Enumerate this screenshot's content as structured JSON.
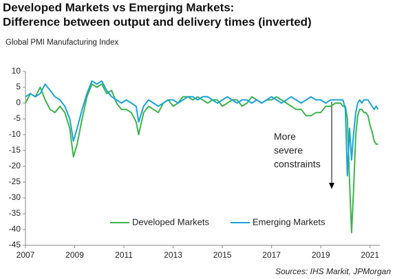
{
  "chart_data": {
    "type": "line",
    "title": "Developed Markets vs Emerging Markets:",
    "subtitle": "Difference between output and delivery times (inverted)",
    "y_label": "Global PMI Manufacturing Index",
    "annotation": [
      "More",
      "severe",
      "constraints"
    ],
    "source": "Sources: IHS Markit, JPMorgan",
    "x": [
      2007.0,
      2007.2,
      2007.4,
      2007.6,
      2007.8,
      2008.0,
      2008.2,
      2008.4,
      2008.6,
      2008.8,
      2008.95,
      2009.1,
      2009.3,
      2009.5,
      2009.7,
      2009.9,
      2010.1,
      2010.3,
      2010.5,
      2010.7,
      2010.9,
      2011.1,
      2011.3,
      2011.5,
      2011.6,
      2011.8,
      2012.0,
      2012.2,
      2012.4,
      2012.6,
      2012.8,
      2013.0,
      2013.2,
      2013.4,
      2013.6,
      2013.8,
      2014.0,
      2014.2,
      2014.4,
      2014.6,
      2014.8,
      2015.0,
      2015.2,
      2015.4,
      2015.6,
      2015.8,
      2016.0,
      2016.2,
      2016.4,
      2016.6,
      2016.8,
      2017.0,
      2017.2,
      2017.4,
      2017.6,
      2017.8,
      2018.0,
      2018.2,
      2018.4,
      2018.6,
      2018.8,
      2019.0,
      2019.2,
      2019.4,
      2019.6,
      2019.8,
      2019.9,
      2020.0,
      2020.08,
      2020.17,
      2020.25,
      2020.33,
      2020.42,
      2020.5,
      2020.58,
      2020.67,
      2020.75,
      2020.83,
      2020.92,
      2021.0,
      2021.08,
      2021.17,
      2021.25,
      2021.33
    ],
    "series": [
      {
        "name": "Developed Markets",
        "color": "#3cb44b",
        "values": [
          0,
          3,
          2,
          5,
          1,
          -2,
          -3,
          -1,
          -3,
          -8,
          -17,
          -13,
          -5,
          2,
          6,
          5,
          6,
          3,
          4,
          0,
          -2,
          -2,
          -3,
          -6,
          -10,
          -3,
          -1,
          -2,
          -3,
          0,
          1,
          -1,
          0,
          2,
          2,
          1,
          2,
          1,
          0,
          1,
          1,
          -1,
          0,
          1,
          1,
          -1,
          0,
          2,
          1,
          0,
          1,
          1,
          2,
          1,
          0,
          -1,
          -2,
          -2,
          -4,
          -4,
          -3,
          -3,
          -1,
          -1,
          0,
          0,
          -1,
          -1,
          -5,
          -25,
          -41,
          -28,
          -10,
          -4,
          -2,
          -2,
          -3,
          -3,
          -4,
          -7,
          -9,
          -12,
          -13,
          -13
        ]
      },
      {
        "name": "Emerging Markets",
        "color": "#1aa3d9",
        "values": [
          2,
          3,
          2,
          3,
          6,
          4,
          2,
          1,
          -1,
          -5,
          -12,
          -8,
          -2,
          3,
          7,
          6,
          7,
          4,
          2,
          1,
          0,
          1,
          0,
          -1,
          -6,
          -1,
          1,
          0,
          -1,
          0,
          1,
          1,
          0,
          1,
          2,
          2,
          1,
          2,
          2,
          1,
          0,
          1,
          2,
          1,
          0,
          1,
          1,
          0,
          1,
          0,
          1,
          2,
          1,
          0,
          1,
          2,
          1,
          0,
          1,
          2,
          1,
          1,
          0,
          1,
          1,
          1,
          1,
          -2,
          -23,
          -8,
          -18,
          -10,
          -3,
          0,
          1,
          0,
          1,
          1,
          1,
          0,
          -1,
          -2,
          -1,
          -2
        ]
      }
    ],
    "xlim": [
      2007,
      2021.4
    ],
    "xticks": [
      2007,
      2009,
      2011,
      2013,
      2015,
      2017,
      2019,
      2021
    ],
    "ylim": [
      -45,
      10
    ],
    "yticks": [
      10,
      5,
      0,
      -5,
      -10,
      -15,
      -20,
      -25,
      -30,
      -35,
      -40,
      -45
    ],
    "legend": "bottom"
  }
}
